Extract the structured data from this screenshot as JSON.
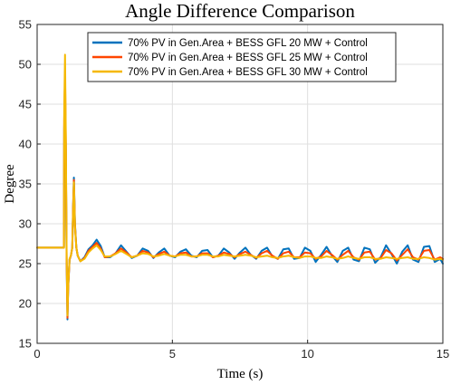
{
  "chart_data": {
    "type": "line",
    "title": "Angle Difference Comparison",
    "xlabel": "Time (s)",
    "ylabel": "Degree",
    "xlim": [
      0,
      15
    ],
    "ylim": [
      15,
      55
    ],
    "xticks": [
      0,
      5,
      10,
      15
    ],
    "yticks": [
      15,
      20,
      25,
      30,
      35,
      40,
      45,
      50,
      55
    ],
    "grid": true,
    "legend_position": "top-right",
    "series": [
      {
        "name": "70% PV in Gen.Area + BESS GFL 20 MW + Control",
        "color": "#0072bd",
        "x": [
          0,
          0.99,
          1.0,
          1.03,
          1.06,
          1.09,
          1.12,
          1.15,
          1.2,
          1.25,
          1.3,
          1.33,
          1.36,
          1.4,
          1.45,
          1.5,
          1.6,
          1.75,
          1.9,
          2.05,
          2.2,
          2.35,
          2.5,
          2.7,
          2.9,
          3.1,
          3.3,
          3.5,
          3.7,
          3.9,
          4.1,
          4.3,
          4.5,
          4.7,
          4.9,
          5.1,
          5.3,
          5.5,
          5.7,
          5.9,
          6.1,
          6.3,
          6.5,
          6.7,
          6.9,
          7.1,
          7.3,
          7.5,
          7.7,
          7.9,
          8.1,
          8.3,
          8.5,
          8.7,
          8.9,
          9.1,
          9.3,
          9.5,
          9.7,
          9.9,
          10.1,
          10.3,
          10.5,
          10.7,
          10.9,
          11.1,
          11.3,
          11.5,
          11.7,
          11.9,
          12.1,
          12.3,
          12.5,
          12.7,
          12.9,
          13.1,
          13.3,
          13.5,
          13.7,
          13.9,
          14.1,
          14.3,
          14.5,
          14.7,
          14.9,
          15.0
        ],
        "values": [
          27.0,
          27.0,
          42.0,
          46.5,
          39.0,
          25.0,
          18.0,
          22.0,
          25.5,
          26.0,
          27.0,
          32.0,
          35.8,
          30.0,
          27.0,
          26.0,
          25.3,
          25.8,
          26.8,
          27.3,
          28.0,
          27.2,
          25.8,
          25.8,
          26.3,
          27.3,
          26.5,
          25.7,
          26.0,
          26.9,
          26.6,
          25.7,
          26.4,
          26.9,
          26.0,
          25.8,
          26.5,
          26.8,
          26.0,
          25.8,
          26.6,
          26.7,
          25.8,
          26.0,
          26.9,
          26.4,
          25.6,
          26.4,
          27.0,
          26.1,
          25.6,
          26.6,
          27.0,
          25.9,
          25.6,
          26.8,
          26.9,
          25.6,
          25.7,
          27.0,
          26.6,
          25.2,
          26.1,
          27.1,
          26.0,
          25.2,
          26.6,
          27.0,
          25.5,
          25.3,
          27.0,
          26.8,
          25.1,
          25.8,
          27.3,
          26.2,
          25.0,
          26.5,
          27.3,
          25.5,
          25.2,
          27.1,
          27.2,
          25.2,
          25.6,
          25.0
        ]
      },
      {
        "name": "70% PV in Gen.Area + BESS GFL 25 MW + Control",
        "color": "#ff4500",
        "x": [
          0,
          0.99,
          1.0,
          1.03,
          1.06,
          1.09,
          1.12,
          1.15,
          1.2,
          1.25,
          1.3,
          1.33,
          1.36,
          1.4,
          1.45,
          1.5,
          1.6,
          1.75,
          1.9,
          2.05,
          2.2,
          2.35,
          2.5,
          2.7,
          2.9,
          3.1,
          3.3,
          3.5,
          3.7,
          3.9,
          4.1,
          4.3,
          4.5,
          4.7,
          4.9,
          5.1,
          5.3,
          5.5,
          5.7,
          5.9,
          6.1,
          6.3,
          6.5,
          6.7,
          6.9,
          7.1,
          7.3,
          7.5,
          7.7,
          7.9,
          8.1,
          8.3,
          8.5,
          8.7,
          8.9,
          9.1,
          9.3,
          9.5,
          9.7,
          9.9,
          10.1,
          10.3,
          10.5,
          10.7,
          10.9,
          11.1,
          11.3,
          11.5,
          11.7,
          11.9,
          12.1,
          12.3,
          12.5,
          12.7,
          12.9,
          13.1,
          13.3,
          13.5,
          13.7,
          13.9,
          14.1,
          14.3,
          14.5,
          14.7,
          14.9,
          15.0
        ],
        "values": [
          27.0,
          27.0,
          43.0,
          49.0,
          40.0,
          25.5,
          18.2,
          22.0,
          25.5,
          26.0,
          27.0,
          32.0,
          35.5,
          29.8,
          27.0,
          26.0,
          25.3,
          25.7,
          26.6,
          27.1,
          27.6,
          26.9,
          25.8,
          25.9,
          26.3,
          26.9,
          26.4,
          25.8,
          26.0,
          26.6,
          26.4,
          25.8,
          26.2,
          26.5,
          26.0,
          25.9,
          26.3,
          26.4,
          25.9,
          25.9,
          26.3,
          26.3,
          25.8,
          26.0,
          26.4,
          26.2,
          25.8,
          26.2,
          26.5,
          26.1,
          25.7,
          26.3,
          26.6,
          26.0,
          25.6,
          26.3,
          26.5,
          25.8,
          25.8,
          26.4,
          26.3,
          25.6,
          25.9,
          26.6,
          26.1,
          25.5,
          26.1,
          26.6,
          25.8,
          25.5,
          26.4,
          26.5,
          25.5,
          25.7,
          26.7,
          26.3,
          25.4,
          26.1,
          26.8,
          25.8,
          25.5,
          26.6,
          26.7,
          25.5,
          25.8,
          25.6
        ]
      },
      {
        "name": "70% PV in Gen.Area + BESS GFL 30 MW + Control",
        "color": "#f5b800",
        "x": [
          0,
          0.99,
          1.0,
          1.03,
          1.06,
          1.09,
          1.12,
          1.15,
          1.2,
          1.25,
          1.3,
          1.33,
          1.36,
          1.4,
          1.45,
          1.5,
          1.6,
          1.75,
          1.9,
          2.05,
          2.2,
          2.35,
          2.5,
          2.7,
          2.9,
          3.1,
          3.3,
          3.5,
          3.7,
          3.9,
          4.1,
          4.3,
          4.5,
          4.7,
          4.9,
          5.1,
          5.3,
          5.5,
          5.7,
          5.9,
          6.1,
          6.3,
          6.5,
          6.7,
          6.9,
          7.1,
          7.3,
          7.5,
          7.7,
          7.9,
          8.1,
          8.3,
          8.5,
          8.7,
          8.9,
          9.1,
          9.3,
          9.5,
          9.7,
          9.9,
          10.1,
          10.3,
          10.5,
          10.7,
          10.9,
          11.1,
          11.3,
          11.5,
          11.7,
          11.9,
          12.1,
          12.3,
          12.5,
          12.7,
          12.9,
          13.1,
          13.3,
          13.5,
          13.7,
          13.9,
          14.1,
          14.3,
          14.5,
          14.7,
          14.9,
          15.0
        ],
        "values": [
          27.0,
          27.0,
          44.0,
          51.2,
          41.0,
          26.0,
          18.5,
          22.2,
          25.6,
          26.0,
          27.0,
          31.5,
          35.2,
          29.6,
          27.0,
          26.0,
          25.3,
          25.6,
          26.4,
          26.9,
          27.3,
          26.7,
          25.9,
          25.9,
          26.2,
          26.6,
          26.2,
          25.8,
          26.0,
          26.3,
          26.2,
          25.9,
          26.0,
          26.2,
          26.0,
          25.9,
          26.1,
          26.1,
          25.9,
          25.9,
          26.1,
          26.1,
          25.9,
          25.9,
          26.1,
          26.0,
          25.9,
          26.0,
          26.1,
          26.0,
          25.8,
          25.9,
          26.0,
          25.8,
          25.7,
          25.9,
          26.0,
          25.8,
          25.7,
          25.9,
          25.9,
          25.7,
          25.7,
          25.9,
          25.8,
          25.6,
          25.7,
          25.9,
          25.7,
          25.6,
          25.8,
          25.8,
          25.6,
          25.6,
          25.8,
          25.7,
          25.6,
          25.7,
          25.8,
          25.6,
          25.6,
          25.8,
          25.7,
          25.5,
          25.6,
          25.5
        ]
      }
    ]
  }
}
